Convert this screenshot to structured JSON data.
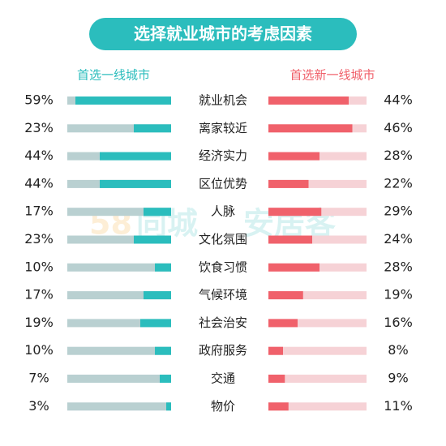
{
  "chart_data": {
    "type": "butterfly",
    "title": "选择就业城市的考虑因素",
    "categories": [
      "就业机会",
      "离家较近",
      "经济实力",
      "区位优势",
      "人脉",
      "文化氛围",
      "饮食习惯",
      "气候环境",
      "社会治安",
      "政府服务",
      "交通",
      "物价"
    ],
    "series": [
      {
        "name": "首选一线城市",
        "color": "#2bbdbd",
        "track_color": "#b9d0d1",
        "values": [
          59,
          23,
          44,
          44,
          17,
          23,
          10,
          17,
          19,
          10,
          7,
          3
        ],
        "value_labels": [
          "59%",
          "23%",
          "44%",
          "44%",
          "17%",
          "23%",
          "10%",
          "17%",
          "19%",
          "10%",
          "7%",
          "3%"
        ]
      },
      {
        "name": "首选新一线城市",
        "color": "#f0616b",
        "track_color": "#f6d2d6",
        "values": [
          44,
          46,
          28,
          22,
          29,
          24,
          28,
          19,
          16,
          8,
          9,
          11
        ],
        "value_labels": [
          "44%",
          "46%",
          "28%",
          "22%",
          "29%",
          "24%",
          "28%",
          "19%",
          "16%",
          "8%",
          "9%",
          "11%"
        ]
      }
    ],
    "watermark": [
      "58",
      "同城",
      "安居客"
    ]
  }
}
